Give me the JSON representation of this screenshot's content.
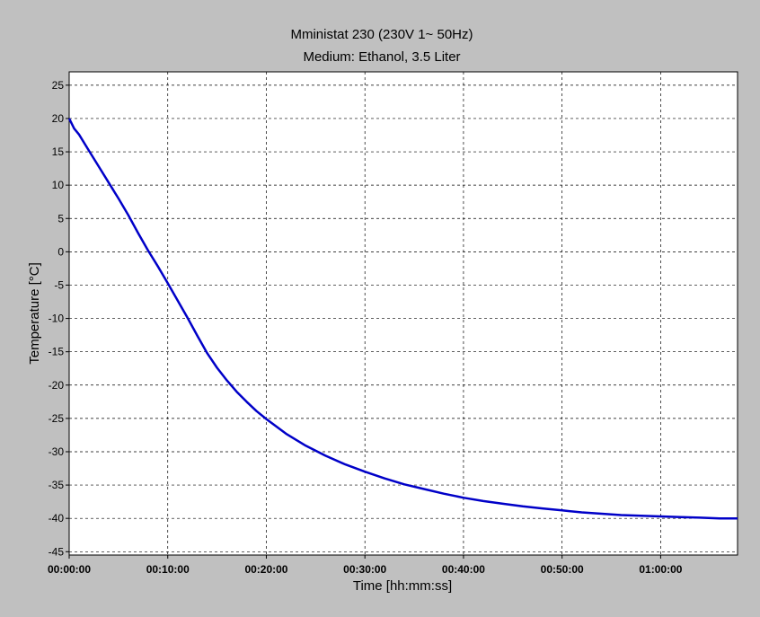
{
  "chart_data": {
    "type": "line",
    "title": "Mministat 230  (230V 1~ 50Hz)",
    "subtitle": "Medium: Ethanol, 3.5 Liter",
    "xlabel": "Time [hh:mm:ss]",
    "ylabel": "Temperature [°C]",
    "x_unit": "minutes",
    "xlim": [
      0,
      67.8
    ],
    "ylim": [
      -45.5,
      27
    ],
    "xticks": [
      0,
      10,
      20,
      30,
      40,
      50,
      60
    ],
    "xtick_labels": [
      "00:00:00",
      "00:10:00",
      "00:20:00",
      "00:30:00",
      "00:40:00",
      "00:50:00",
      "01:00:00"
    ],
    "yticks": [
      25,
      20,
      15,
      10,
      5,
      0,
      -5,
      -10,
      -15,
      -20,
      -25,
      -30,
      -35,
      -40,
      -45
    ],
    "grid": true,
    "series_color": "#0000c8",
    "series": [
      {
        "x": [
          0,
          0.5,
          1,
          2,
          3,
          4,
          5,
          6,
          7,
          8,
          9,
          10,
          11,
          12,
          13,
          14,
          15,
          16,
          17,
          18,
          19,
          20,
          22,
          24,
          26,
          28,
          30,
          32,
          34,
          36,
          38,
          40,
          42,
          44,
          46,
          48,
          50,
          52,
          54,
          56,
          58,
          60,
          62,
          64,
          66,
          67.8
        ],
        "y": [
          20,
          18.5,
          17.6,
          15.2,
          12.8,
          10.4,
          8.0,
          5.5,
          2.8,
          0.2,
          -2.2,
          -4.7,
          -7.3,
          -9.9,
          -12.6,
          -15.2,
          -17.4,
          -19.3,
          -21.0,
          -22.5,
          -23.9,
          -25.1,
          -27.3,
          -29.1,
          -30.6,
          -31.9,
          -33.0,
          -34.0,
          -34.9,
          -35.6,
          -36.3,
          -36.9,
          -37.4,
          -37.8,
          -38.2,
          -38.5,
          -38.8,
          -39.1,
          -39.3,
          -39.5,
          -39.6,
          -39.7,
          -39.8,
          -39.9,
          -40.0,
          -40.0
        ]
      }
    ]
  }
}
